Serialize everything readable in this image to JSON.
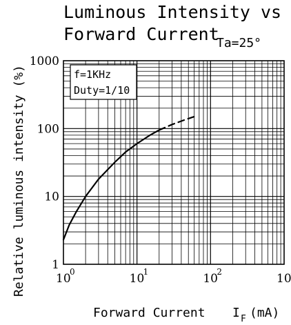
{
  "chart_data": {
    "type": "line",
    "title_line1": "Luminous Intensity vs",
    "title_line2": "Forward Current",
    "condition": "Ta=25°",
    "note_line1": "f=1KHz",
    "note_line2": "Duty=1/10",
    "xlabel": "Forward Current",
    "xlabel_symbol": "I",
    "xlabel_subscript": "F",
    "xlabel_unit": "(mA)",
    "ylabel": "Relative luminous intensity (%)",
    "x_scale": "log",
    "y_scale": "log",
    "xlim": [
      1,
      1000
    ],
    "ylim": [
      1,
      1000
    ],
    "x_ticks": [
      1,
      10,
      100,
      1000
    ],
    "x_tick_base": "10",
    "x_tick_exponents": [
      "0",
      "1",
      "2",
      "3"
    ],
    "y_ticks": [
      1,
      10,
      100,
      1000
    ],
    "y_tick_labels": [
      "1",
      "10",
      "100",
      "1000"
    ],
    "grid": true,
    "series": [
      {
        "style": "solid",
        "x": [
          1,
          1.2,
          1.5,
          2,
          3,
          5,
          7,
          10,
          15,
          20
        ],
        "y": [
          2.3,
          3.8,
          6,
          10,
          18,
          32,
          45,
          60,
          80,
          95
        ]
      },
      {
        "style": "dashed",
        "x": [
          20,
          30,
          45,
          60
        ],
        "y": [
          95,
          115,
          135,
          150
        ]
      }
    ]
  }
}
